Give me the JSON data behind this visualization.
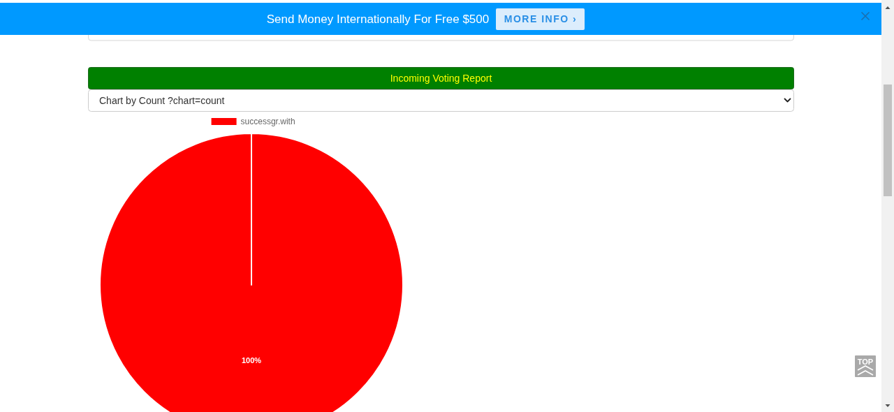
{
  "chart_data": {
    "type": "pie",
    "title": "Incoming Voting Report",
    "categories": [
      "successgr.with"
    ],
    "values": [
      100
    ],
    "colors": [
      "#ff0000"
    ],
    "value_labels": [
      "100%"
    ],
    "legend": "top",
    "annotations": [
      "Send Money Internationally For Free $500",
      "MORE INFO ›",
      "Chart by Count ?chart=count",
      "TOP"
    ]
  }
}
